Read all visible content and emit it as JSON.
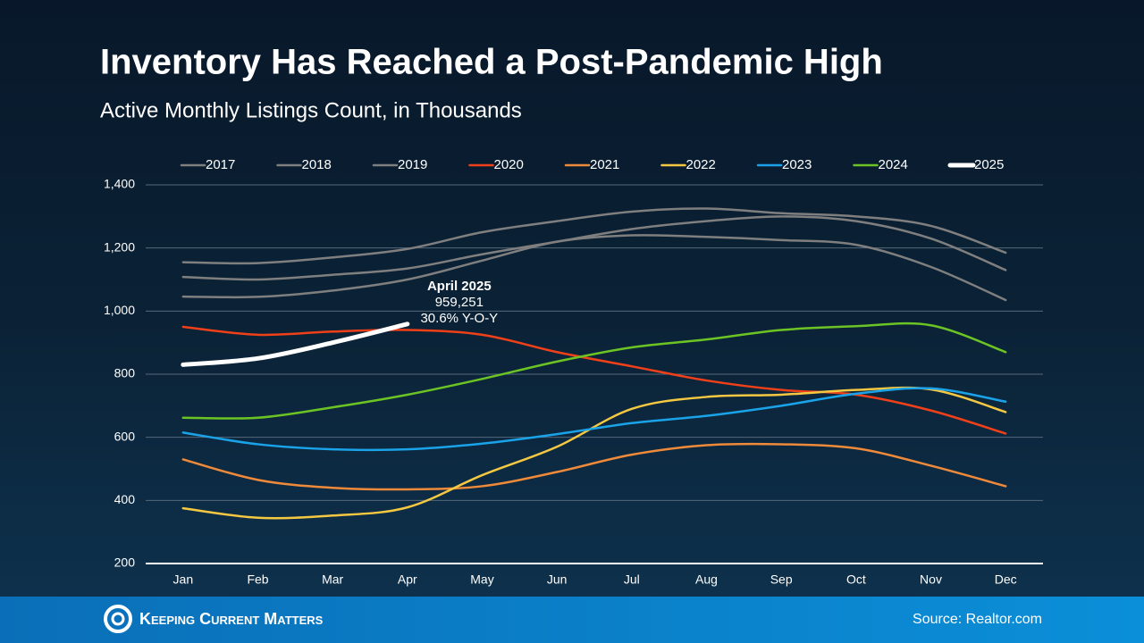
{
  "chart_data": {
    "type": "line",
    "title": "Inventory Has Reached a Post-Pandemic High",
    "subtitle": "Active Monthly Listings Count, in Thousands",
    "categories": [
      "Jan",
      "Feb",
      "Mar",
      "Apr",
      "May",
      "Jun",
      "Jul",
      "Aug",
      "Sep",
      "Oct",
      "Nov",
      "Dec"
    ],
    "series": [
      {
        "name": "2017",
        "color": "#7f7f7f",
        "values": [
          1155,
          1152,
          1170,
          1197,
          1250,
          1285,
          1315,
          1325,
          1310,
          1300,
          1270,
          1185
        ]
      },
      {
        "name": "2018",
        "color": "#7f7f7f",
        "values": [
          1108,
          1100,
          1115,
          1135,
          1180,
          1220,
          1260,
          1285,
          1300,
          1285,
          1230,
          1130
        ]
      },
      {
        "name": "2019",
        "color": "#7f7f7f",
        "values": [
          1046,
          1045,
          1065,
          1100,
          1160,
          1220,
          1240,
          1235,
          1225,
          1210,
          1140,
          1035
        ]
      },
      {
        "name": "2020",
        "color": "#f0401a",
        "values": [
          950,
          925,
          935,
          940,
          925,
          870,
          825,
          780,
          750,
          735,
          685,
          612
        ]
      },
      {
        "name": "2021",
        "color": "#ee8a3a",
        "values": [
          530,
          465,
          440,
          435,
          445,
          490,
          545,
          575,
          578,
          565,
          510,
          445
        ]
      },
      {
        "name": "2022",
        "color": "#f5c842",
        "values": [
          375,
          345,
          352,
          378,
          480,
          570,
          690,
          728,
          735,
          750,
          752,
          680
        ]
      },
      {
        "name": "2023",
        "color": "#1aa3e8",
        "values": [
          615,
          578,
          562,
          562,
          580,
          610,
          645,
          668,
          700,
          738,
          755,
          713
        ]
      },
      {
        "name": "2024",
        "color": "#6cc424",
        "values": [
          662,
          662,
          695,
          735,
          785,
          840,
          885,
          910,
          940,
          952,
          955,
          870
        ]
      },
      {
        "name": "2025",
        "color": "#ffffff",
        "values": [
          830,
          850,
          900,
          959,
          null,
          null,
          null,
          null,
          null,
          null,
          null,
          null
        ]
      }
    ],
    "ylim": [
      200,
      1400
    ],
    "yticks": [
      200,
      400,
      600,
      800,
      {
        "value": 1000,
        "label": "1,000"
      },
      {
        "value": 1200,
        "label": "1,200"
      },
      {
        "value": 1400,
        "label": "1,400"
      }
    ],
    "grid": true,
    "legend": "top",
    "annotations": [
      "April 2025",
      "959,251",
      "30.6% Y-O-Y"
    ]
  },
  "footer": {
    "brand": "Keeping Current Matters",
    "source": "Source: Realtor.com"
  }
}
